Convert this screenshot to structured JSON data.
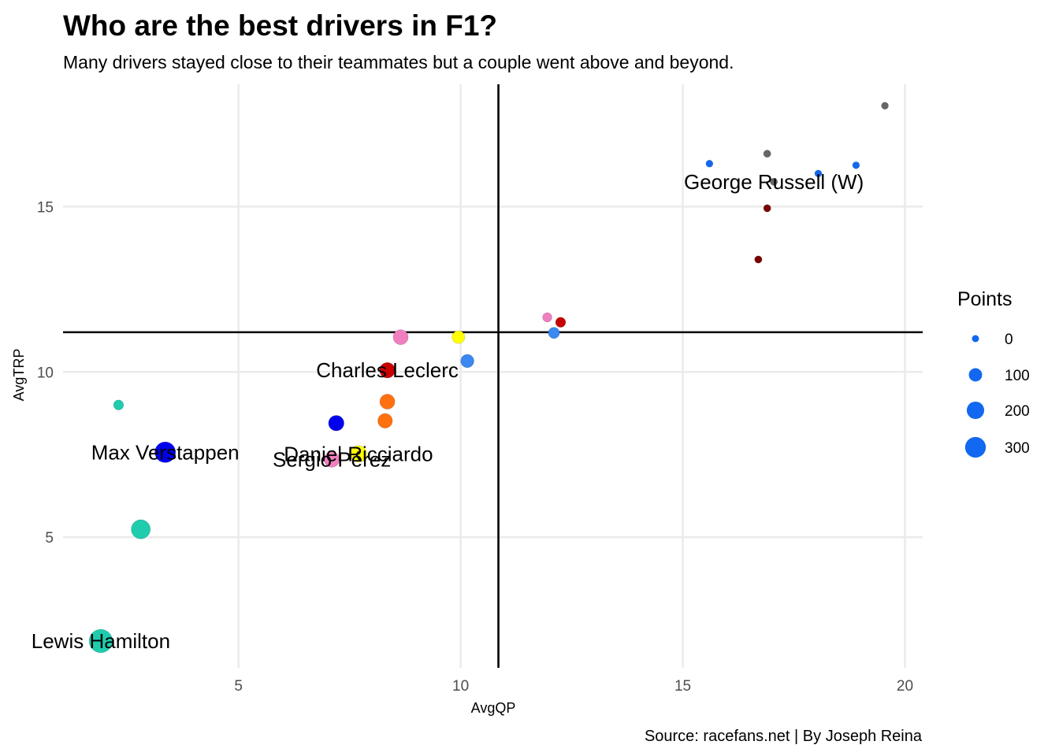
{
  "chart_data": {
    "type": "scatter",
    "title": "Who are the best drivers in F1?",
    "subtitle": "Many drivers stayed close to their teammates but a couple went above and beyond.",
    "xlabel": "AvgQP",
    "ylabel": "AvgTRP",
    "caption": "Source: racefans.net | By Joseph Reina",
    "xlim": [
      1.05,
      20.4
    ],
    "ylim": [
      1.05,
      18.7
    ],
    "x_ticks": [
      5,
      10,
      15,
      20
    ],
    "y_ticks": [
      5,
      10,
      15
    ],
    "grid": true,
    "reference_lines": {
      "vline_x": 10.85,
      "hline_y": 11.2
    },
    "size_legend": {
      "title": "Points",
      "placement": "right",
      "color": "#1268f0",
      "entries": [
        {
          "label": "0",
          "value": 0
        },
        {
          "label": "100",
          "value": 100
        },
        {
          "label": "200",
          "value": 200
        },
        {
          "label": "300",
          "value": 300
        }
      ]
    },
    "points": [
      {
        "x": 1.9,
        "y": 1.86,
        "size": 395,
        "color": "#1fccae",
        "label": "Lewis Hamilton"
      },
      {
        "x": 2.8,
        "y": 5.24,
        "size": 250,
        "color": "#1fccae",
        "label": ""
      },
      {
        "x": 2.3,
        "y": 9.0,
        "size": 40,
        "color": "#1fccae",
        "label": ""
      },
      {
        "x": 3.35,
        "y": 7.57,
        "size": 300,
        "color": "#0000ee",
        "label": "Max Verstappen"
      },
      {
        "x": 7.2,
        "y": 8.45,
        "size": 150,
        "color": "#0000ee",
        "label": ""
      },
      {
        "x": 7.1,
        "y": 7.35,
        "size": 150,
        "color": "#f07fbf",
        "label": "Sergio Pérez"
      },
      {
        "x": 8.65,
        "y": 11.05,
        "size": 140,
        "color": "#f07fbf",
        "label": ""
      },
      {
        "x": 11.95,
        "y": 11.65,
        "size": 30,
        "color": "#f07fbf",
        "label": ""
      },
      {
        "x": 7.7,
        "y": 7.52,
        "size": 180,
        "color": "#ffff00",
        "label": "Daniel Ricciardo"
      },
      {
        "x": 9.95,
        "y": 11.05,
        "size": 90,
        "color": "#ffff00",
        "label": ""
      },
      {
        "x": 8.35,
        "y": 10.05,
        "size": 150,
        "color": "#c80000",
        "label": "Charles Leclerc"
      },
      {
        "x": 12.25,
        "y": 11.5,
        "size": 40,
        "color": "#c80000",
        "label": ""
      },
      {
        "x": 8.35,
        "y": 9.1,
        "size": 140,
        "color": "#ff7010",
        "label": ""
      },
      {
        "x": 8.3,
        "y": 8.52,
        "size": 130,
        "color": "#ff7010",
        "label": ""
      },
      {
        "x": 10.15,
        "y": 10.33,
        "size": 100,
        "color": "#3b88f0",
        "label": ""
      },
      {
        "x": 12.1,
        "y": 11.18,
        "size": 60,
        "color": "#3b88f0",
        "label": ""
      },
      {
        "x": 16.7,
        "y": 13.4,
        "size": 3,
        "color": "#7a0000",
        "label": ""
      },
      {
        "x": 16.9,
        "y": 14.95,
        "size": 3,
        "color": "#7a0000",
        "label": ""
      },
      {
        "x": 17.05,
        "y": 15.75,
        "size": 3,
        "color": "#666666",
        "label": "George Russell (W)"
      },
      {
        "x": 16.9,
        "y": 16.6,
        "size": 3,
        "color": "#666666",
        "label": ""
      },
      {
        "x": 19.55,
        "y": 18.05,
        "size": 0,
        "color": "#666666",
        "label": ""
      },
      {
        "x": 15.6,
        "y": 16.3,
        "size": 0,
        "color": "#1268f0",
        "label": ""
      },
      {
        "x": 18.05,
        "y": 16.0,
        "size": 0,
        "color": "#1268f0",
        "label": ""
      },
      {
        "x": 18.9,
        "y": 16.25,
        "size": 0,
        "color": "#1268f0",
        "label": ""
      }
    ]
  }
}
